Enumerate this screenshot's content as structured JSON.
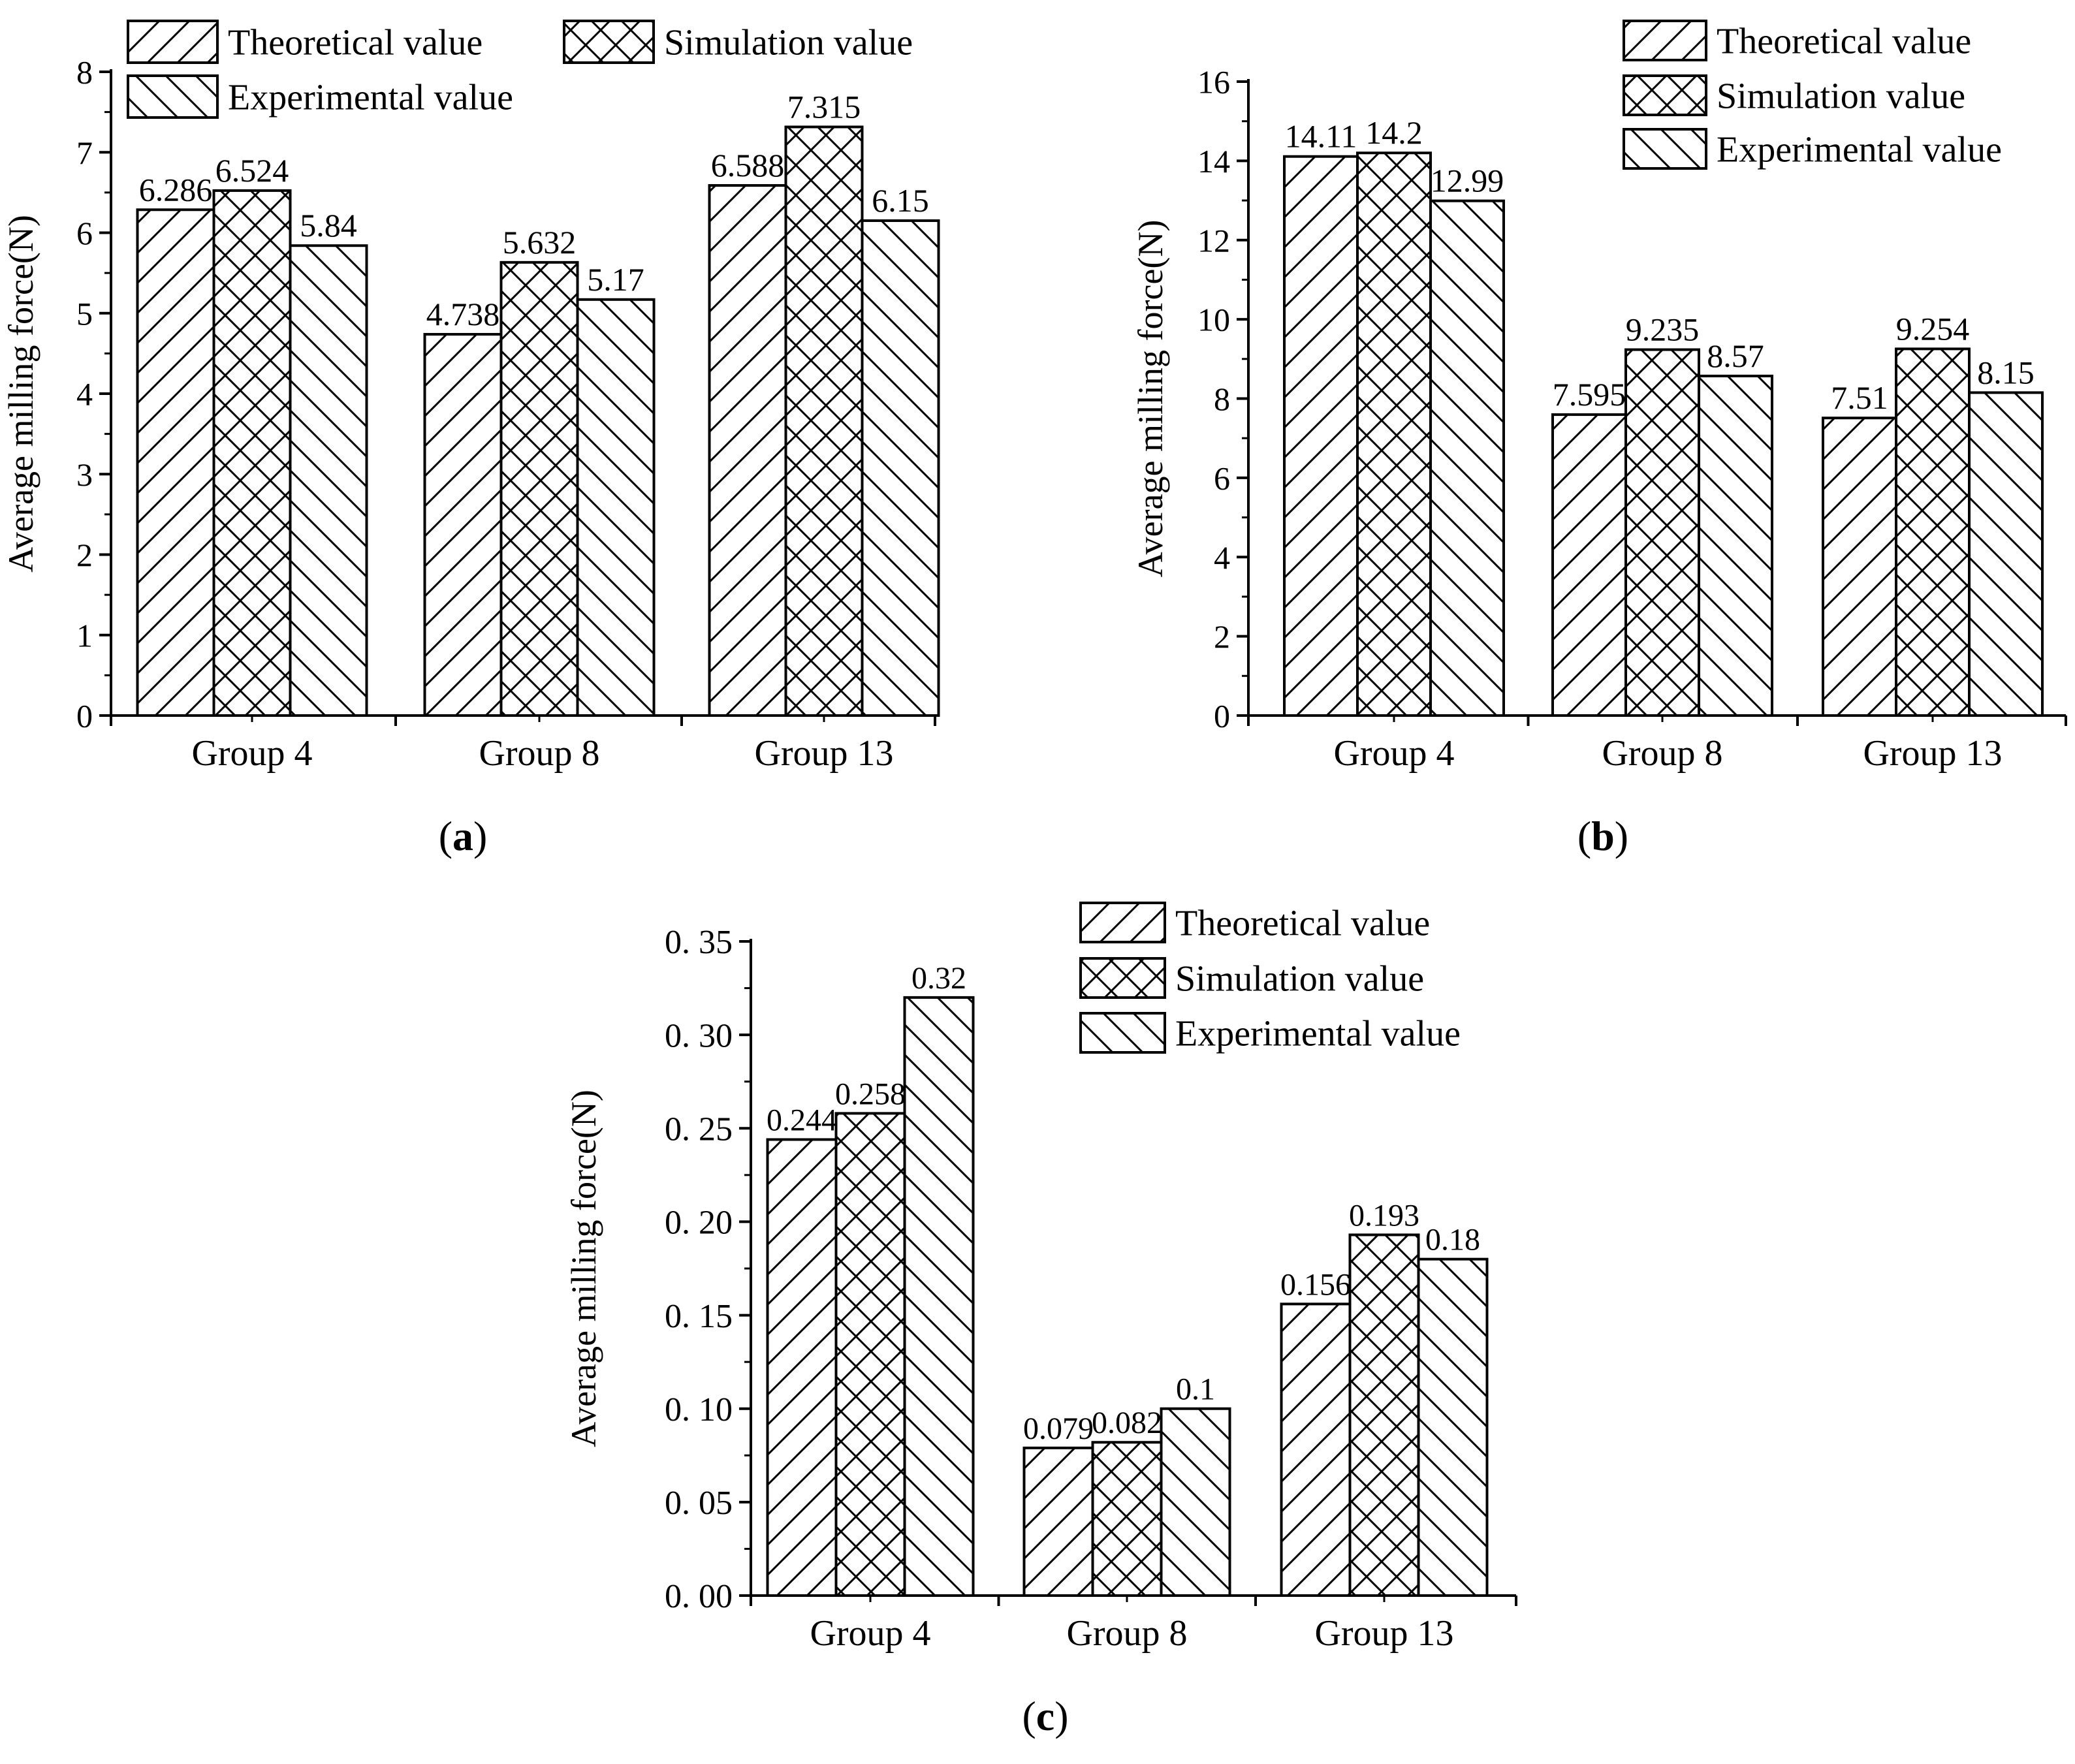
{
  "chart_data": [
    {
      "type": "bar",
      "panel": "a",
      "panel_label": "a",
      "categories": [
        "Group 4",
        "Group 8",
        "Group 13"
      ],
      "series": [
        {
          "name": "Theoretical value",
          "pattern": "forward",
          "values": [
            6.286,
            4.738,
            6.588
          ],
          "labels": [
            "6.286",
            "4.738",
            "6.588"
          ]
        },
        {
          "name": "Simulation value",
          "pattern": "cross",
          "values": [
            6.524,
            5.632,
            7.315
          ],
          "labels": [
            "6.524",
            "5.632",
            "7.315"
          ]
        },
        {
          "name": "Experimental value",
          "pattern": "back",
          "values": [
            5.84,
            5.17,
            6.15
          ],
          "labels": [
            "5.84",
            "5.17",
            "6.15"
          ]
        }
      ],
      "ylabel": "Average milling force(N)",
      "xlabel": "",
      "ylim": [
        0,
        8
      ],
      "yticks": [
        0,
        1,
        2,
        3,
        4,
        5,
        6,
        7,
        8
      ],
      "ytick_labels": [
        "0",
        "1",
        "2",
        "3",
        "4",
        "5",
        "6",
        "7",
        "8"
      ],
      "legend_placement": "top, two columns"
    },
    {
      "type": "bar",
      "panel": "b",
      "panel_label": "b",
      "categories": [
        "Group 4",
        "Group 8",
        "Group 13"
      ],
      "series": [
        {
          "name": "Theoretical value",
          "pattern": "forward",
          "values": [
            14.11,
            7.595,
            7.51
          ],
          "labels": [
            "14.11",
            "7.595",
            "7.51"
          ]
        },
        {
          "name": "Simulation value",
          "pattern": "cross",
          "values": [
            14.2,
            9.235,
            9.254
          ],
          "labels": [
            "14.2",
            "9.235",
            "9.254"
          ]
        },
        {
          "name": "Experimental value",
          "pattern": "back",
          "values": [
            12.99,
            8.57,
            8.15
          ],
          "labels": [
            "12.99",
            "8.57",
            "8.15"
          ]
        }
      ],
      "ylabel": "Average milling force(N)",
      "xlabel": "",
      "ylim": [
        0,
        16
      ],
      "yticks": [
        0,
        2,
        4,
        6,
        8,
        10,
        12,
        14,
        16
      ],
      "ytick_labels": [
        "0",
        "2",
        "4",
        "6",
        "8",
        "10",
        "12",
        "14",
        "16"
      ],
      "legend_placement": "top-right"
    },
    {
      "type": "bar",
      "panel": "c",
      "panel_label": "c",
      "categories": [
        "Group 4",
        "Group 8",
        "Group 13"
      ],
      "series": [
        {
          "name": "Theoretical value",
          "pattern": "forward",
          "values": [
            0.244,
            0.079,
            0.156
          ],
          "labels": [
            "0.244",
            "0.079",
            "0.156"
          ]
        },
        {
          "name": "Simulation value",
          "pattern": "cross",
          "values": [
            0.258,
            0.082,
            0.193
          ],
          "labels": [
            "0.258",
            "0.082",
            "0.193"
          ]
        },
        {
          "name": "Experimental value",
          "pattern": "back",
          "values": [
            0.32,
            0.1,
            0.18
          ],
          "labels": [
            "0.32",
            "0.1",
            "0.18"
          ]
        }
      ],
      "ylabel": "Average milling force(N)",
      "xlabel": "",
      "ylim": [
        0,
        0.35
      ],
      "yticks": [
        0,
        0.05,
        0.1,
        0.15,
        0.2,
        0.25,
        0.3,
        0.35
      ],
      "ytick_labels": [
        "0. 00",
        "0. 05",
        "0. 10",
        "0. 15",
        "0. 20",
        "0. 25",
        "0. 30",
        "0. 35"
      ],
      "legend_placement": "top-right"
    }
  ]
}
